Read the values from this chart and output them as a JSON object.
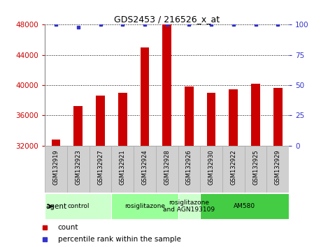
{
  "title": "GDS2453 / 216526_x_at",
  "samples": [
    "GSM132919",
    "GSM132923",
    "GSM132927",
    "GSM132921",
    "GSM132924",
    "GSM132928",
    "GSM132926",
    "GSM132930",
    "GSM132922",
    "GSM132925",
    "GSM132929"
  ],
  "counts": [
    32800,
    37200,
    38600,
    39000,
    45000,
    48000,
    39800,
    39000,
    39500,
    40200,
    39600
  ],
  "dot_y_right": [
    100,
    98,
    100,
    100,
    100,
    100,
    100,
    100,
    100,
    100,
    100
  ],
  "ylim_left": [
    32000,
    48000
  ],
  "ylim_right": [
    0,
    100
  ],
  "yticks_left": [
    32000,
    36000,
    40000,
    44000,
    48000
  ],
  "yticks_right": [
    0,
    25,
    50,
    75,
    100
  ],
  "bar_color": "#cc0000",
  "dot_color": "#3333cc",
  "bar_width": 0.4,
  "groups": [
    {
      "label": "control",
      "indices": [
        0,
        1,
        2
      ],
      "color": "#ccffcc"
    },
    {
      "label": "rosiglitazone",
      "indices": [
        3,
        4,
        5
      ],
      "color": "#99ff99"
    },
    {
      "label": "rosiglitazone\nand AGN193109",
      "indices": [
        6
      ],
      "color": "#ccffcc"
    },
    {
      "label": "AM580",
      "indices": [
        7,
        8,
        9,
        10
      ],
      "color": "#44cc44"
    }
  ],
  "legend_count_label": "count",
  "legend_percentile_label": "percentile rank within the sample",
  "agent_label": "agent",
  "background_color": "#ffffff",
  "tick_label_color_left": "#cc0000",
  "tick_label_color_right": "#3333cc",
  "sample_box_color": "#d0d0d0",
  "sample_box_edge": "#aaaaaa"
}
